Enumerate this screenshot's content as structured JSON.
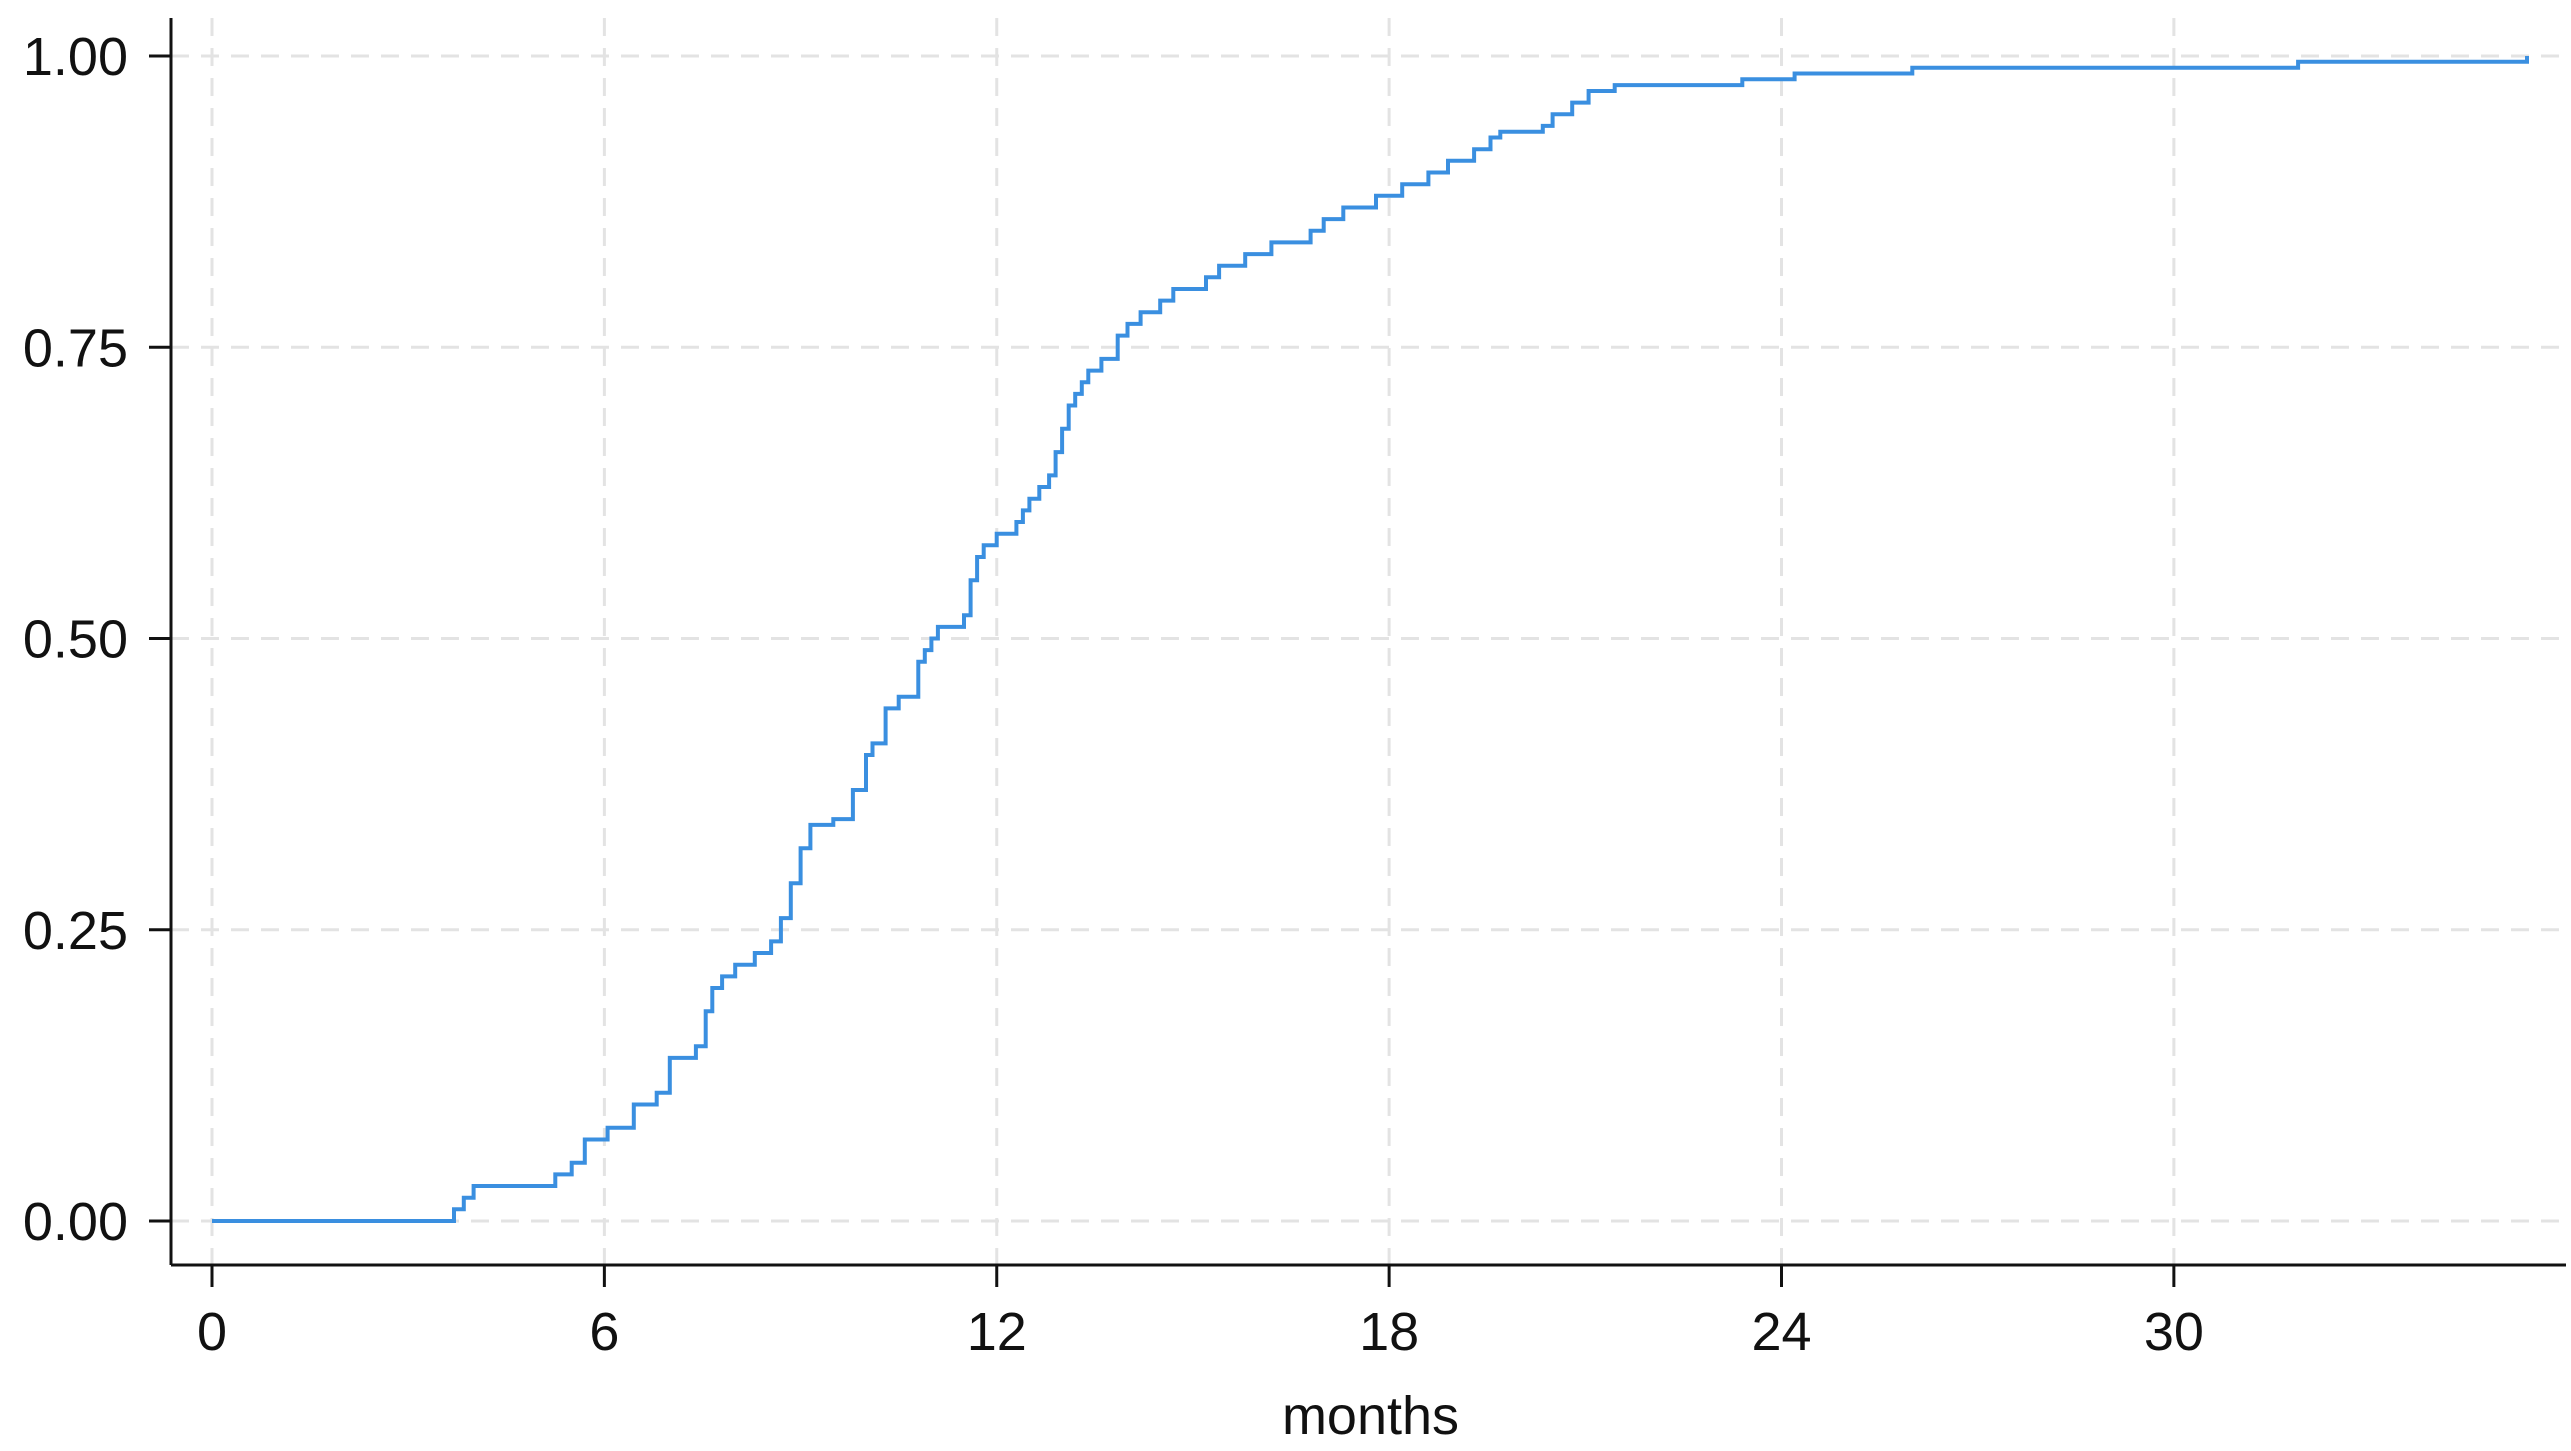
{
  "chart_data": {
    "type": "line",
    "title": "",
    "xlabel": "months",
    "ylabel": "",
    "xlim": [
      0,
      35.4
    ],
    "ylim": [
      0,
      1
    ],
    "x_ticks": [
      {
        "value": 0,
        "label": "0"
      },
      {
        "value": 6,
        "label": "6"
      },
      {
        "value": 12,
        "label": "12"
      },
      {
        "value": 18,
        "label": "18"
      },
      {
        "value": 24,
        "label": "24"
      },
      {
        "value": 30,
        "label": "30"
      }
    ],
    "y_ticks": [
      {
        "value": 0,
        "label": "0.00"
      },
      {
        "value": 0.25,
        "label": "0.25"
      },
      {
        "value": 0.5,
        "label": "0.50"
      },
      {
        "value": 0.75,
        "label": "0.75"
      },
      {
        "value": 1,
        "label": "1.00"
      }
    ],
    "grid": true,
    "legend": "none",
    "step": "post",
    "series": [
      {
        "color": "#3a8fe0",
        "x": [
          0,
          3.7,
          3.85,
          4.0,
          5.25,
          5.5,
          5.7,
          6.05,
          6.45,
          6.8,
          7.0,
          7.4,
          7.55,
          7.65,
          7.8,
          8.0,
          8.3,
          8.55,
          8.7,
          8.85,
          9.0,
          9.15,
          9.5,
          9.8,
          10.0,
          10.1,
          10.3,
          10.5,
          10.8,
          10.9,
          11.0,
          11.1,
          11.5,
          11.6,
          11.7,
          11.8,
          12.0,
          12.3,
          12.4,
          12.5,
          12.65,
          12.8,
          12.9,
          13.0,
          13.1,
          13.2,
          13.3,
          13.4,
          13.6,
          13.85,
          14.0,
          14.2,
          14.5,
          14.7,
          15.2,
          15.4,
          15.8,
          16.2,
          16.8,
          17.0,
          17.3,
          17.8,
          18.2,
          18.6,
          18.9,
          19.3,
          19.55,
          19.7,
          20.35,
          20.5,
          20.8,
          21.05,
          21.45,
          23.4,
          24.2,
          26.0,
          31.9,
          35.4
        ],
        "y": [
          0.0,
          0.01,
          0.02,
          0.03,
          0.04,
          0.05,
          0.07,
          0.08,
          0.1,
          0.11,
          0.14,
          0.15,
          0.18,
          0.2,
          0.21,
          0.22,
          0.23,
          0.24,
          0.26,
          0.29,
          0.32,
          0.34,
          0.345,
          0.37,
          0.4,
          0.41,
          0.44,
          0.45,
          0.48,
          0.49,
          0.5,
          0.51,
          0.52,
          0.55,
          0.57,
          0.58,
          0.59,
          0.6,
          0.61,
          0.62,
          0.63,
          0.64,
          0.66,
          0.68,
          0.7,
          0.71,
          0.72,
          0.73,
          0.74,
          0.76,
          0.77,
          0.78,
          0.79,
          0.8,
          0.81,
          0.82,
          0.83,
          0.84,
          0.85,
          0.86,
          0.87,
          0.88,
          0.89,
          0.9,
          0.91,
          0.92,
          0.93,
          0.935,
          0.94,
          0.95,
          0.96,
          0.97,
          0.975,
          0.98,
          0.985,
          0.99,
          0.995,
          1.0
        ]
      }
    ]
  }
}
